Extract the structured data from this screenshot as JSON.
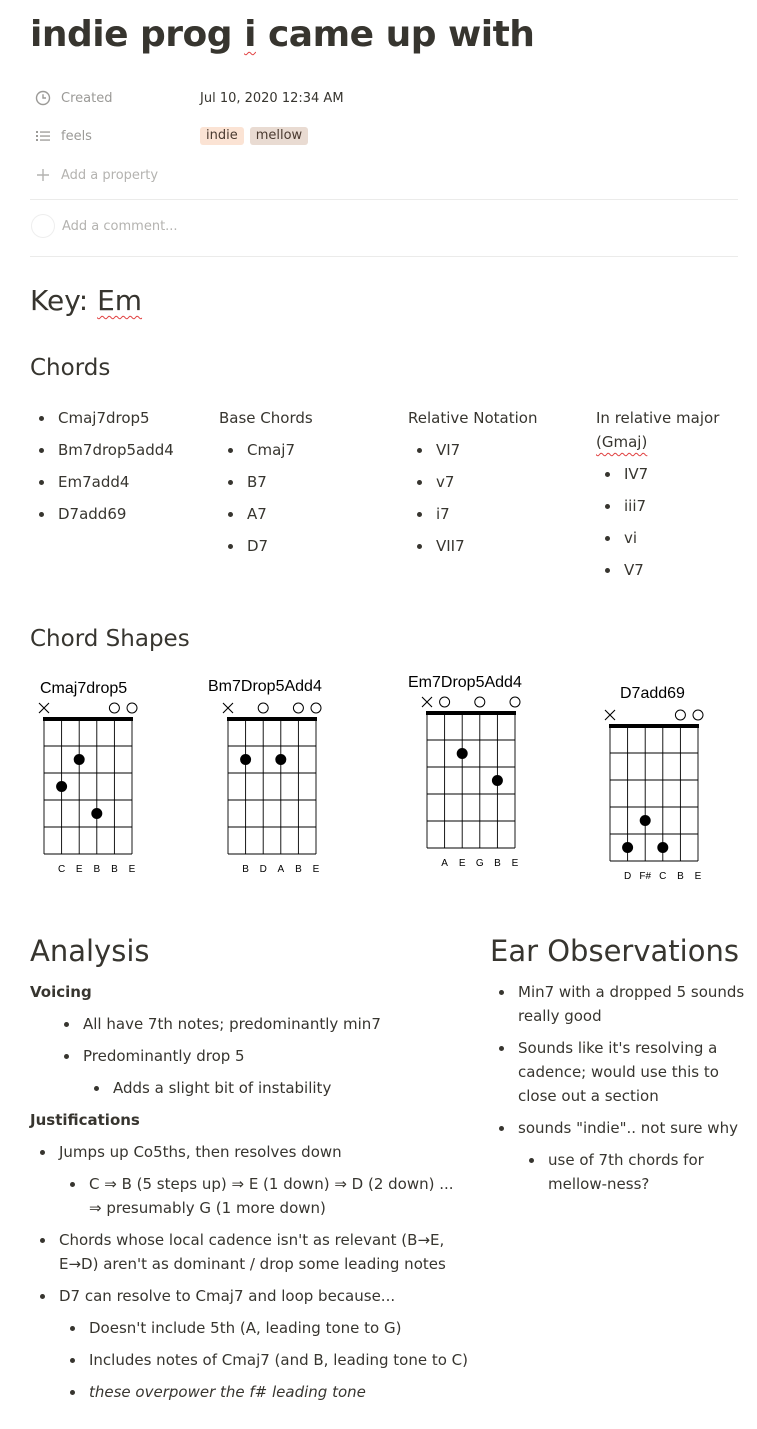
{
  "page": {
    "title_prefix": "indie prog ",
    "title_word": "i",
    "title_suffix": " came up with"
  },
  "properties": {
    "created_label": "Created",
    "created_value": "Jul 10, 2020 12:34 AM",
    "feels_label": "feels",
    "tags": [
      {
        "label": "indie",
        "color": "#fbe3d4"
      },
      {
        "label": "mellow",
        "color": "#e9dbd2"
      }
    ],
    "add_property": "Add a property",
    "add_comment_placeholder": "Add a comment..."
  },
  "key": {
    "prefix": "Key: ",
    "value": "Em"
  },
  "chords": {
    "heading": "Chords",
    "list": [
      "Cmaj7drop5",
      "Bm7drop5add4",
      "Em7add4",
      "D7add69"
    ],
    "base_header": "Base Chords",
    "base": [
      "Cmaj7",
      "B7",
      "A7",
      "D7"
    ],
    "relative_header": "Relative Notation",
    "relative": [
      "VI7",
      "v7",
      "i7",
      "VII7"
    ],
    "major_header_line1": "In relative major",
    "major_header_line2": "(Gmaj)",
    "major": [
      "IV7",
      "iii7",
      "vi",
      "V7"
    ]
  },
  "shapes": {
    "heading": "Chord Shapes",
    "diagrams": [
      {
        "name": "Cmaj7drop5",
        "open_mute": [
          "x",
          "",
          "",
          "",
          "o",
          "o"
        ],
        "dots": [
          [
            2,
            2
          ],
          [
            3,
            1
          ],
          [
            4,
            3
          ]
        ],
        "notes": [
          "",
          "C",
          "E",
          "B",
          "B",
          "E"
        ]
      },
      {
        "name": "Bm7Drop5Add4",
        "open_mute": [
          "x",
          "",
          "o",
          "",
          "o",
          "o"
        ],
        "dots": [
          [
            2,
            1
          ],
          [
            2,
            3
          ]
        ],
        "notes": [
          "",
          "B",
          "D",
          "A",
          "B",
          "E"
        ]
      },
      {
        "name": "Em7Drop5Add4",
        "open_mute": [
          "x",
          "o",
          "",
          "o",
          "",
          "o"
        ],
        "dots": [
          [
            2,
            2
          ],
          [
            3,
            4
          ]
        ],
        "notes": [
          "",
          "A",
          "E",
          "G",
          "B",
          "E"
        ]
      },
      {
        "name": "D7add69",
        "open_mute": [
          "x",
          "",
          "",
          "",
          "o",
          "o"
        ],
        "dots": [
          [
            4,
            2
          ],
          [
            5,
            1
          ],
          [
            5,
            3
          ]
        ],
        "notes": [
          "",
          "D",
          "F#",
          "C",
          "B",
          "E"
        ]
      }
    ]
  },
  "analysis": {
    "heading": "Analysis",
    "voicing_label": "Voicing",
    "voicing_1": "All have 7th notes; predominantly min7",
    "voicing_2": "Predominantly drop 5",
    "voicing_2a": "Adds a slight bit of instability",
    "justifications_label": "Justifications",
    "just_1": "Jumps up Co5ths, then resolves down",
    "just_1a_line1": "C ⇒ B (5 steps up) ⇒ E (1 down) ⇒ D (2 down) ...",
    "just_1a_line2": "⇒ presumably G (1 more down)",
    "just_2_line1": "Chords whose local cadence isn't as relevant (B→E,",
    "just_2_line2": "E→D) aren't as dominant / drop some leading notes",
    "just_3": "D7 can resolve to Cmaj7 and loop because...",
    "just_3a": "Doesn't include 5th (A, leading tone to G)",
    "just_3b": "Includes notes of Cmaj7 (and B, leading tone to C)",
    "just_3c": "these overpower the f# leading tone"
  },
  "ear": {
    "heading": "Ear Observations",
    "obs_1_line1": "Min7 with a dropped 5 sounds",
    "obs_1_line2": "really good",
    "obs_2_line1": "Sounds like it's resolving a",
    "obs_2_line2": "cadence; would use this to",
    "obs_2_line3": "close out a section",
    "obs_3": "sounds \"indie\".. not sure why",
    "obs_3a_line1": "use of 7th chords for",
    "obs_3a_line2": "mellow-ness?"
  },
  "icons": {
    "created": "clock-icon",
    "feels": "list-icon",
    "add": "plus-icon"
  }
}
